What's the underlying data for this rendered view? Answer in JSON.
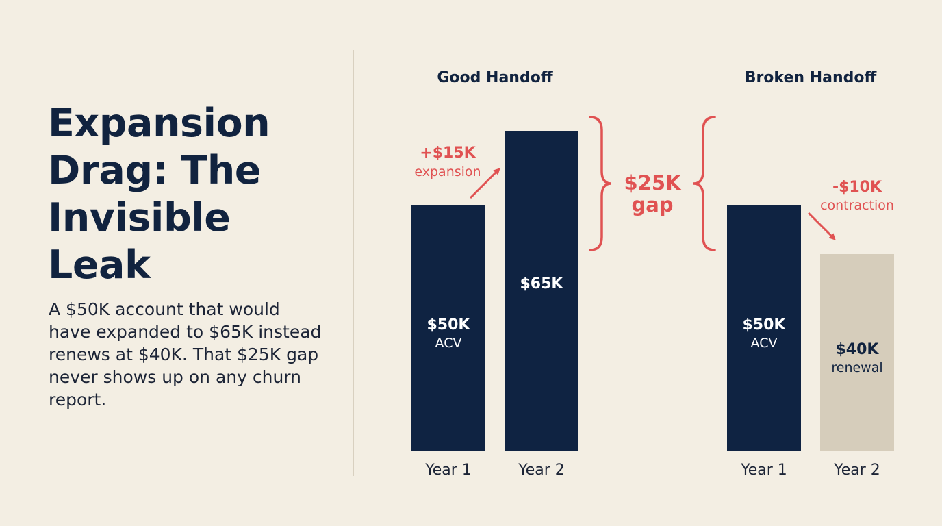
{
  "title": "Expansion Drag: The Invisible Leak",
  "description": "A $50K account that would have expanded to $65K instead renews at $40K. That $25K gap never shows up on any churn report.",
  "colors": {
    "bar": "#0f2342",
    "renewal_bar": "#d6cdbb",
    "accent": "#e05252",
    "background": "#f3eee3"
  },
  "chart_data": [
    {
      "type": "bar",
      "title": "Good Handoff",
      "categories": [
        "Year 1",
        "Year 2"
      ],
      "values": [
        50,
        65
      ],
      "bar_labels": [
        {
          "value": "$50K",
          "sub": "ACV"
        },
        {
          "value": "$65K",
          "sub": ""
        }
      ],
      "annotation": {
        "value": "+$15K",
        "label": "expansion"
      }
    },
    {
      "type": "bar",
      "title": "Broken Handoff",
      "categories": [
        "Year 1",
        "Year 2"
      ],
      "values": [
        50,
        40
      ],
      "bar_labels": [
        {
          "value": "$50K",
          "sub": "ACV"
        },
        {
          "value": "$40K",
          "sub": "renewal"
        }
      ],
      "annotation": {
        "value": "-$10K",
        "label": "contraction"
      }
    }
  ],
  "gap": {
    "value": "$25K",
    "label": "gap"
  }
}
